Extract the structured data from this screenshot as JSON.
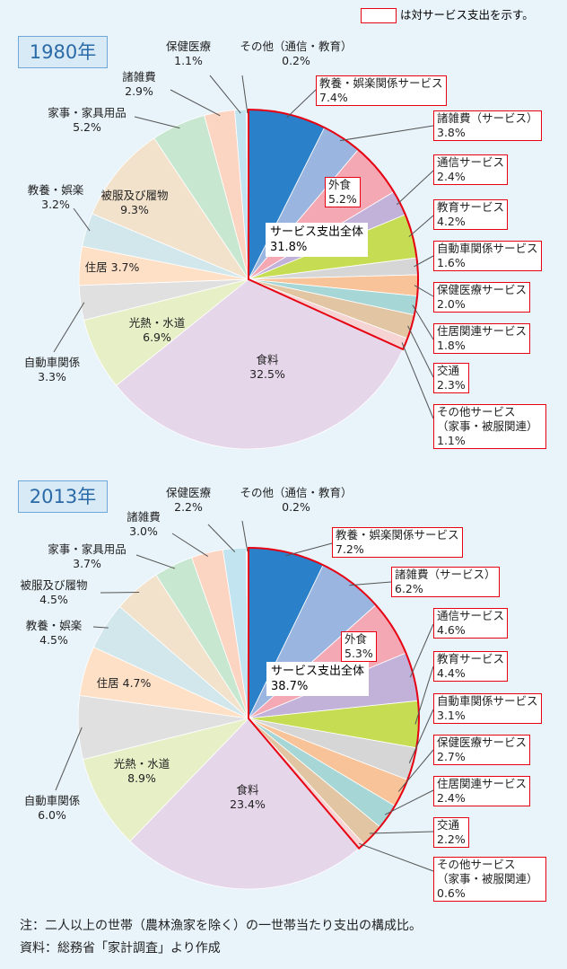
{
  "legend": {
    "text": "は対サービス支出を示す。",
    "color": "#e60012"
  },
  "notes": [
    "注：二人以上の世帯（農林漁家を除く）の一世帯当たり支出の構成比。",
    "資料：総務省「家計調査」より作成"
  ],
  "chart_data": [
    {
      "type": "pie",
      "title": "1980年",
      "categories": [
        "教養・娯楽関係サービス",
        "諸雑費（サービス）",
        "外食",
        "通信サービス",
        "教育サービス",
        "自動車関係サービス",
        "保健医療サービス",
        "住居関連サービス",
        "交通",
        "その他サービス（家事・被服関連）",
        "食料",
        "光熱・水道",
        "自動車関係",
        "住居",
        "教養・娯楽",
        "被服及び履物",
        "家事・家具用品",
        "諸雑費",
        "保健医療",
        "その他（通信・教育）"
      ],
      "values": [
        7.4,
        3.8,
        5.2,
        2.4,
        4.2,
        1.6,
        2.0,
        1.8,
        2.3,
        1.1,
        32.5,
        6.9,
        3.3,
        3.7,
        3.2,
        9.3,
        5.2,
        2.9,
        1.1,
        0.2
      ],
      "value_labels": [
        "7.4%",
        "3.8%",
        "5.2%",
        "2.4%",
        "4.2%",
        "1.6%",
        "2.0%",
        "1.8%",
        "2.3%",
        "1.1%",
        "32.5%",
        "6.9%",
        "3.3%",
        "3.7%",
        "3.2%",
        "9.3%",
        "5.2%",
        "2.9%",
        "1.1%",
        "0.2%"
      ],
      "highlight": [
        true,
        true,
        true,
        true,
        true,
        true,
        true,
        true,
        true,
        true,
        false,
        false,
        false,
        false,
        false,
        false,
        false,
        false,
        false,
        false
      ],
      "colors": [
        "#2a80c9",
        "#9ab6e0",
        "#f4a8b4",
        "#c2b2da",
        "#c6dc52",
        "#d6d6d6",
        "#f8c398",
        "#a6d6d6",
        "#e2c6a4",
        "#f6d4d4",
        "#e6d6ea",
        "#e6efc6",
        "#e0e0e0",
        "#fde0c6",
        "#d2e7ec",
        "#f2e2cc",
        "#c8e7d0",
        "#fcd4c2",
        "#c2e3f0",
        "#ffffff"
      ],
      "service_total": {
        "label": "サービス支出全体",
        "value": 31.8,
        "value_label": "31.8%"
      }
    },
    {
      "type": "pie",
      "title": "2013年",
      "categories": [
        "教養・娯楽関係サービス",
        "諸雑費（サービス）",
        "外食",
        "通信サービス",
        "教育サービス",
        "自動車関係サービス",
        "保健医療サービス",
        "住居関連サービス",
        "交通",
        "その他サービス（家事・被服関連）",
        "食料",
        "光熱・水道",
        "自動車関係",
        "住居",
        "教養・娯楽",
        "被服及び履物",
        "家事・家具用品",
        "諸雑費",
        "保健医療",
        "その他（通信・教育）"
      ],
      "values": [
        7.2,
        6.2,
        5.3,
        4.6,
        4.4,
        3.1,
        2.7,
        2.4,
        2.2,
        0.6,
        23.4,
        8.9,
        6.0,
        4.7,
        4.5,
        4.5,
        3.7,
        3.0,
        2.2,
        0.2
      ],
      "value_labels": [
        "7.2%",
        "6.2%",
        "5.3%",
        "4.6%",
        "4.4%",
        "3.1%",
        "2.7%",
        "2.4%",
        "2.2%",
        "0.6%",
        "23.4%",
        "8.9%",
        "6.0%",
        "4.7%",
        "4.5%",
        "4.5%",
        "3.7%",
        "3.0%",
        "2.2%",
        "0.2%"
      ],
      "highlight": [
        true,
        true,
        true,
        true,
        true,
        true,
        true,
        true,
        true,
        true,
        false,
        false,
        false,
        false,
        false,
        false,
        false,
        false,
        false,
        false
      ],
      "colors": [
        "#2a80c9",
        "#9ab6e0",
        "#f4a8b4",
        "#c2b2da",
        "#c6dc52",
        "#d6d6d6",
        "#f8c398",
        "#a6d6d6",
        "#e2c6a4",
        "#f6d4d4",
        "#e6d6ea",
        "#e6efc6",
        "#e0e0e0",
        "#fde0c6",
        "#d2e7ec",
        "#f2e2cc",
        "#c8e7d0",
        "#fcd4c2",
        "#c2e3f0",
        "#ffffff"
      ],
      "service_total": {
        "label": "サービス支出全体",
        "value": 38.7,
        "value_label": "38.7%"
      }
    }
  ]
}
